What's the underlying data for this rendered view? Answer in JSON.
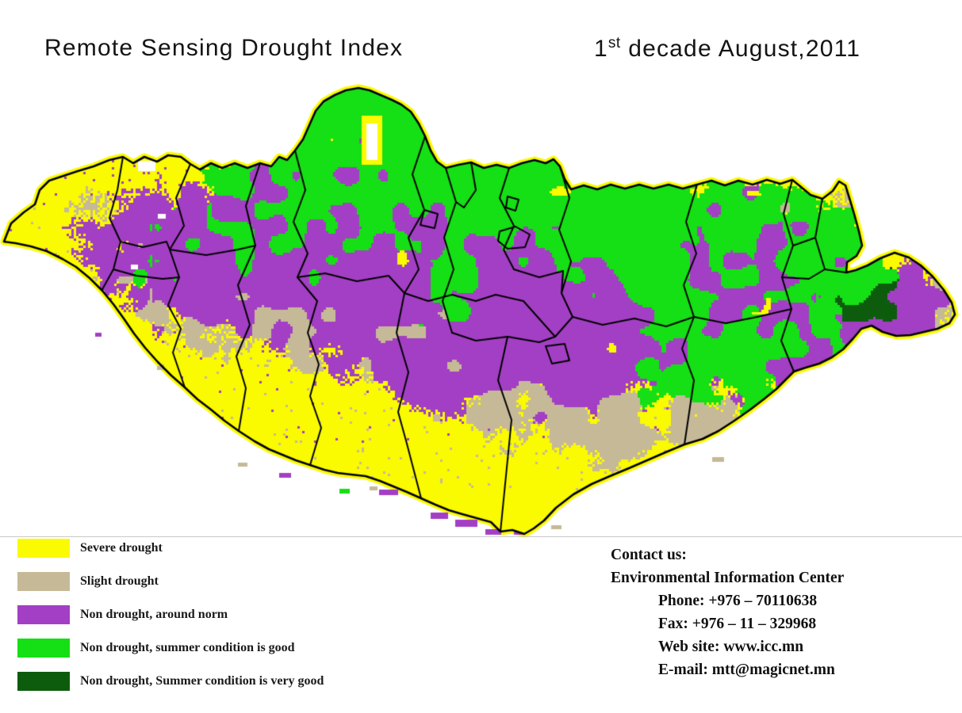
{
  "title": {
    "main": "Remote Sensing Drought Index",
    "date_number": "1",
    "date_ordinal": "st",
    "date_rest": " decade August,2011"
  },
  "map": {
    "name": "Mongolia remote sensing drought index map",
    "colors": {
      "severe_drought": "#FAFA00",
      "slight_drought": "#C6B998",
      "non_drought_norm": "#A33FC4",
      "non_drought_good": "#15DF15",
      "non_drought_very_good": "#0D5C0D",
      "border": "#000000",
      "lake": "#FFFFFF",
      "background": "#FFFFFF"
    }
  },
  "legend": {
    "items": [
      {
        "label": "Severe drought",
        "color": "#FAFA00"
      },
      {
        "label": "Slight drought",
        "color": "#C6B998"
      },
      {
        "label": "Non drought, around norm",
        "color": "#A33FC4"
      },
      {
        "label": "Non drought, summer condition is good",
        "color": "#15DF15"
      },
      {
        "label": "Non drought, Summer condition is very good",
        "color": "#0D5C0D"
      }
    ]
  },
  "contact": {
    "heading": "Contact us:",
    "org": "Environmental Information Center",
    "phone": "Phone: +976 – 70110638",
    "fax": "Fax: +976 – 11 – 329968",
    "website": "Web site: www.icc.mn",
    "email": "E-mail: mtt@magicnet.mn"
  }
}
